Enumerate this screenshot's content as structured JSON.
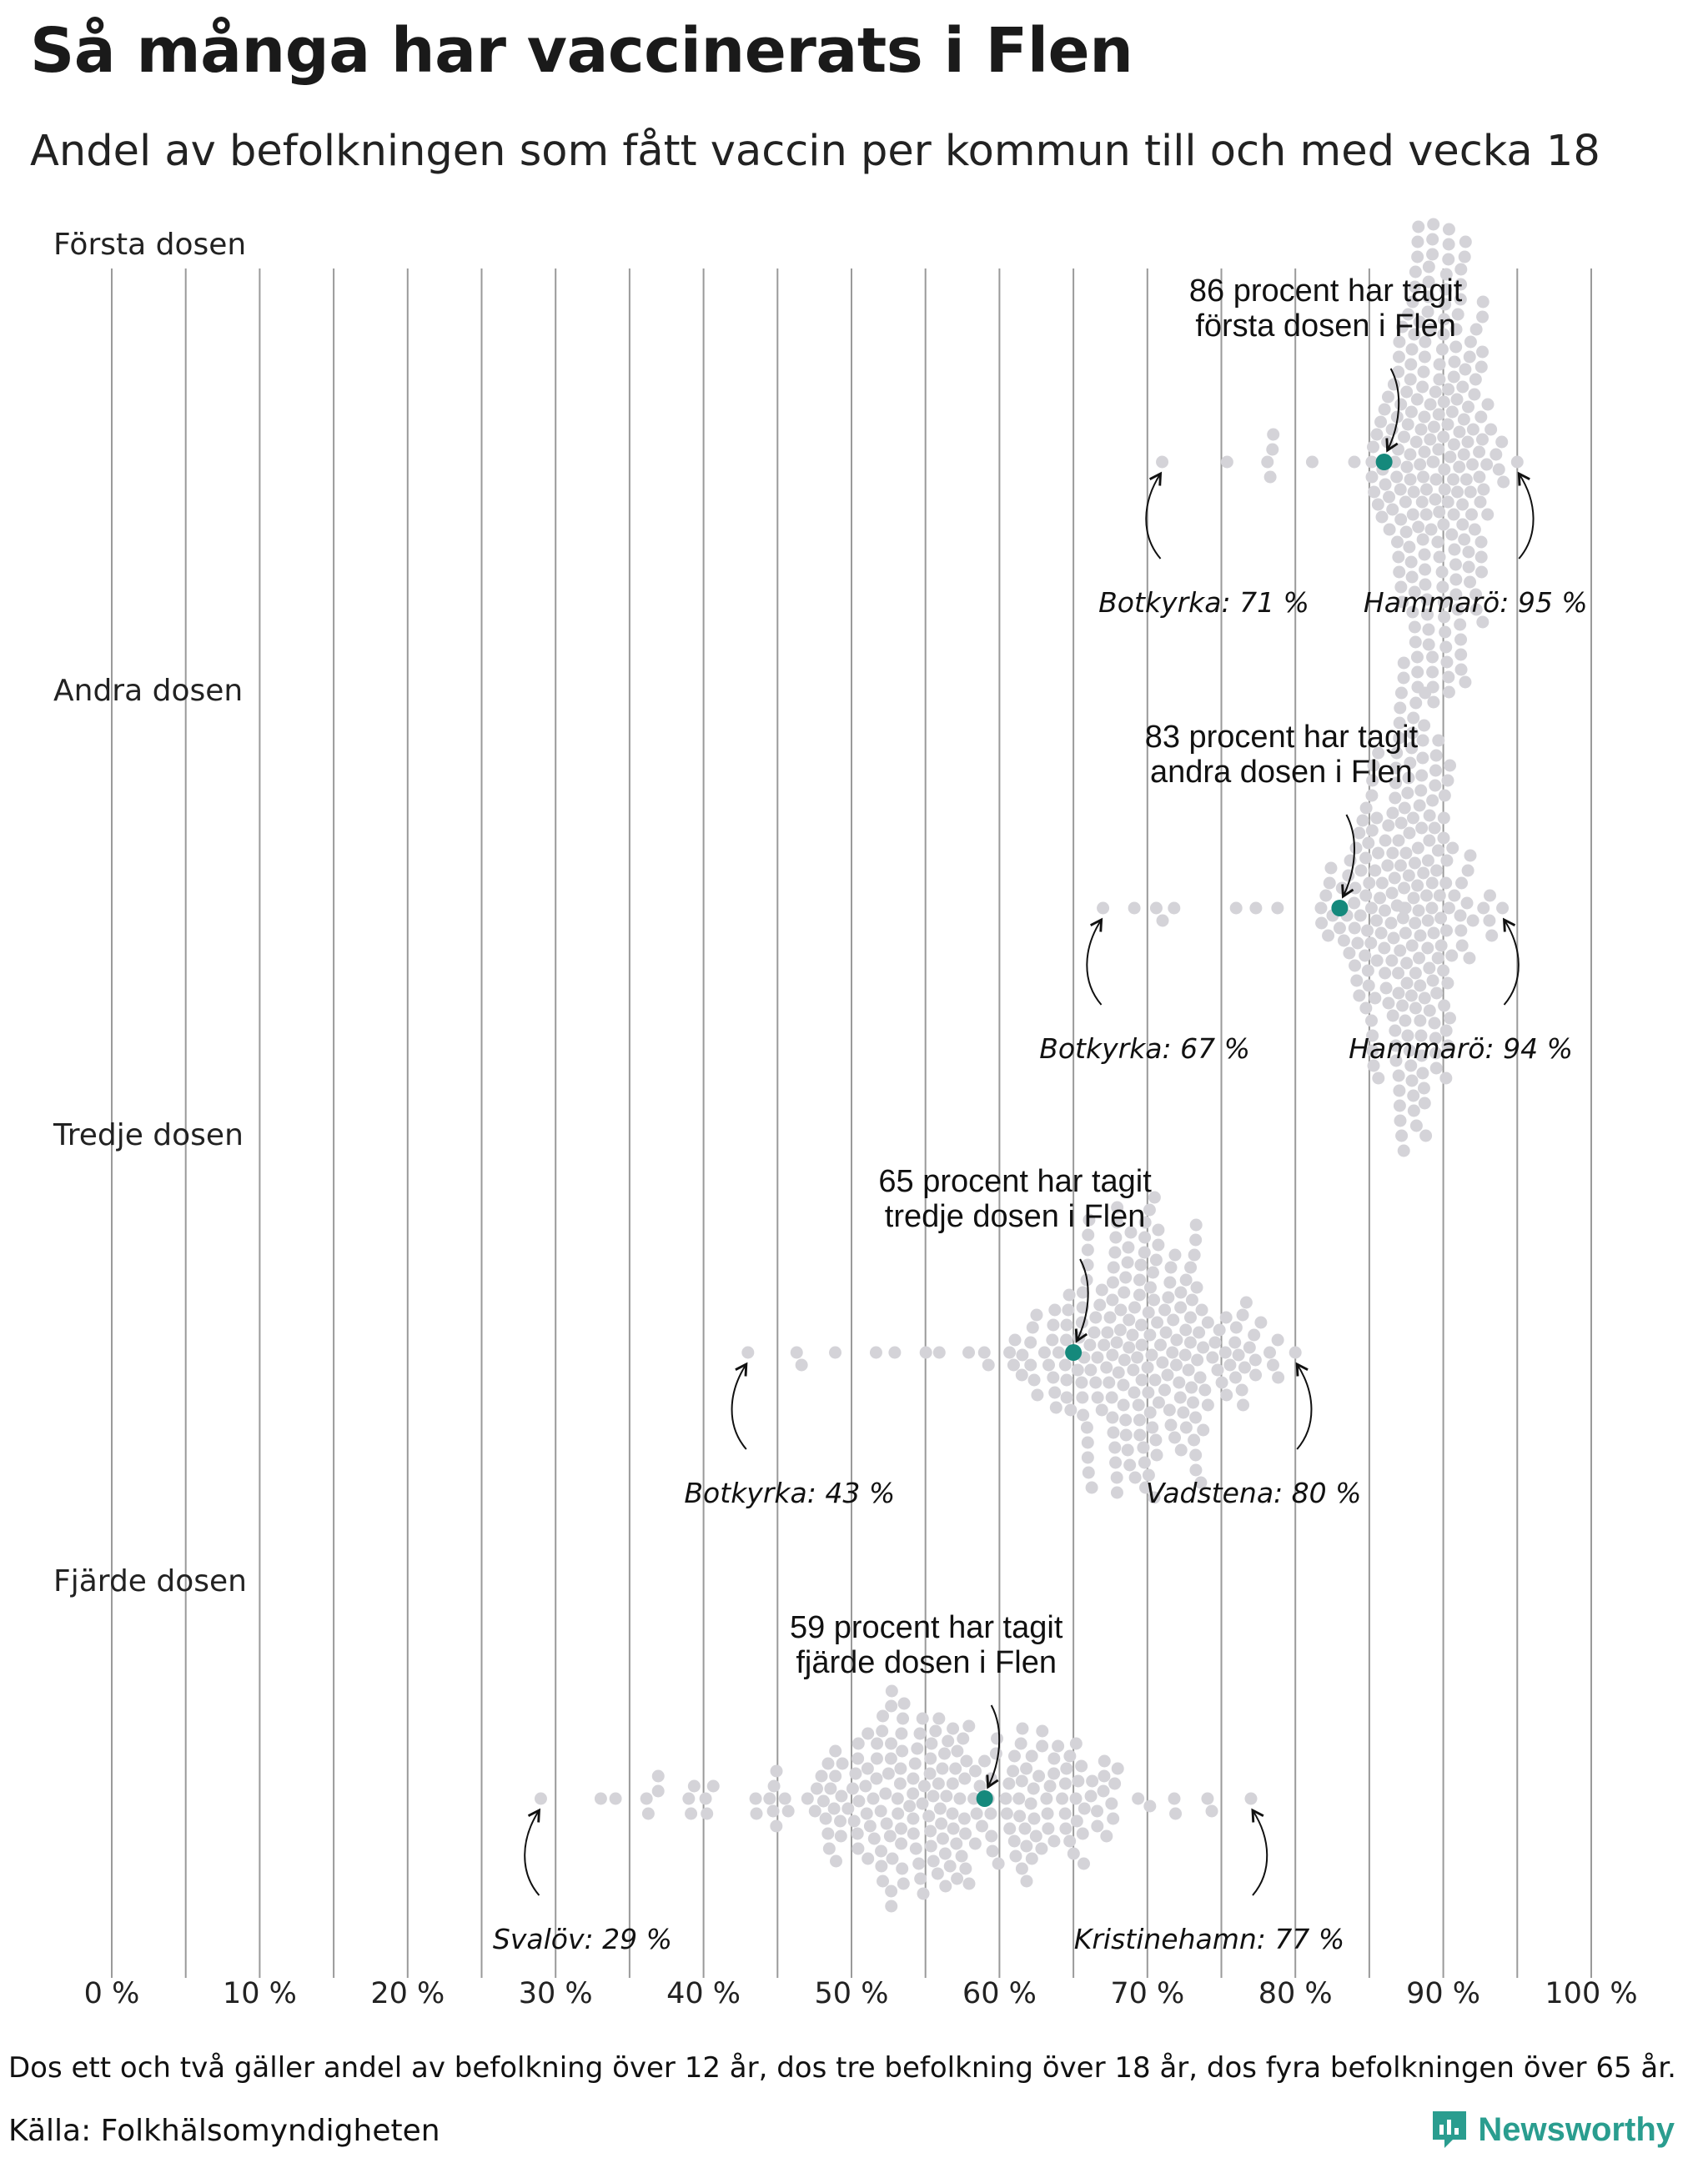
{
  "title": "Så många har vaccinerats i Flen",
  "subtitle": "Andel av befolkningen som fått vaccin per kommun till och med vecka 18",
  "footnote": "Dos ett och två gäller andel av befolkning över 12 år, dos tre befolkning över 18 år, dos fyra befolkningen över 65 år.",
  "source": "Källa: Folkhälsomyndigheten",
  "brand": "Newsworthy",
  "colors": {
    "highlight": "#15897c",
    "dots": "#d4d3d8",
    "gridline": "#9a9a9a",
    "brand": "#2a9d8f"
  },
  "chart_data": {
    "type": "scatter",
    "subtype": "beeswarm",
    "xlabel": "",
    "ylabel": "",
    "xlim": [
      0,
      100
    ],
    "x_ticks": [
      0,
      10,
      20,
      30,
      40,
      50,
      60,
      70,
      80,
      90,
      100
    ],
    "x_tick_labels": [
      "0 %",
      "10 %",
      "20 %",
      "30 %",
      "40 %",
      "50 %",
      "60 %",
      "70 %",
      "80 %",
      "90 %",
      "100 %"
    ],
    "gridlines_every": 5,
    "highlight_municipality": "Flen",
    "panels": [
      {
        "label": "Första dosen",
        "flen_value": 86,
        "annotation": [
          "86 procent har tagit",
          "första dosen i Flen"
        ],
        "min": {
          "name": "Botkyrka",
          "value": 71,
          "label": "Botkyrka: 71 %"
        },
        "max": {
          "name": "Hammarö",
          "value": 95,
          "label": "Hammarö: 95 %"
        },
        "distribution": {
          "center": 89.5,
          "spread": 2.1,
          "count": 230
        }
      },
      {
        "label": "Andra dosen",
        "flen_value": 83,
        "annotation": [
          "83 procent har tagit",
          "andra dosen i Flen"
        ],
        "min": {
          "name": "Botkyrka",
          "value": 67,
          "label": "Botkyrka: 67 %"
        },
        "max": {
          "name": "Hammarö",
          "value": 94,
          "label": "Hammarö: 94 %"
        },
        "distribution": {
          "center": 87.5,
          "spread": 2.5,
          "count": 230
        }
      },
      {
        "label": "Tredje dosen",
        "flen_value": 65,
        "annotation": [
          "65 procent har tagit",
          "tredje dosen i Flen"
        ],
        "min": {
          "name": "Botkyrka",
          "value": 43,
          "label": "Botkyrka: 43 %"
        },
        "max": {
          "name": "Vadstena",
          "value": 80,
          "label": "Vadstena: 80 %"
        },
        "distribution": {
          "center": 69.5,
          "spread": 4.0,
          "count": 230
        }
      },
      {
        "label": "Fjärde dosen",
        "flen_value": 59,
        "annotation": [
          "59 procent har tagit",
          "fjärde dosen i Flen"
        ],
        "min": {
          "name": "Svalöv",
          "value": 29,
          "label": "Svalöv: 29 %"
        },
        "max": {
          "name": "Kristinehamn",
          "value": 77,
          "label": "Kristinehamn: 77 %"
        },
        "distribution": {
          "center": 56,
          "spread": 7.5,
          "count": 230
        }
      }
    ]
  }
}
